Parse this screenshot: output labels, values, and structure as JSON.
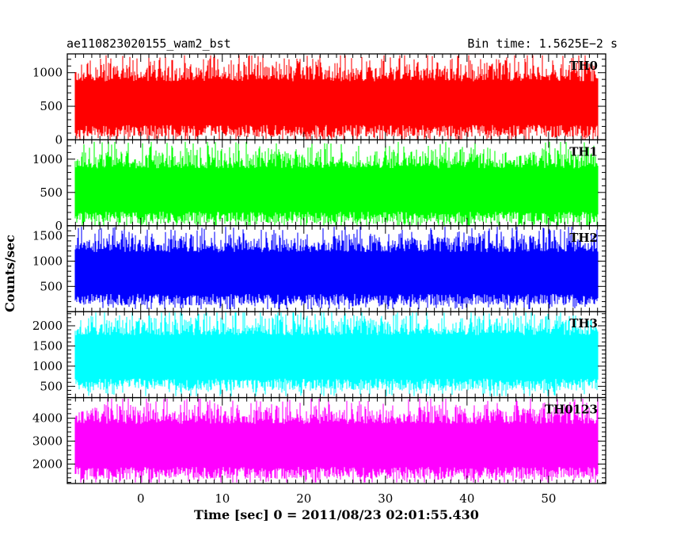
{
  "header": {
    "left_title": "ae110823020155_wam2_bst",
    "right_title": "Bin time: 1.5625E−2 s"
  },
  "chart_data": {
    "type": "line",
    "ylabel": "Counts/sec",
    "xlabel": "Time [sec] 0 = 2011/08/23 02:01:55.430",
    "xlim": [
      -9,
      57
    ],
    "data_range": [
      -8.0,
      56.0
    ],
    "xticks": [
      0,
      10,
      20,
      30,
      40,
      50
    ],
    "panels": [
      {
        "name": "TH0",
        "color": "#ff0000",
        "ylim": [
          0,
          1280
        ],
        "yticks": [
          0,
          500,
          1000
        ],
        "mean": 560,
        "spread": 260,
        "low_min": 0,
        "high_max": 1260
      },
      {
        "name": "TH1",
        "color": "#00ff00",
        "ylim": [
          0,
          1290
        ],
        "yticks": [
          0,
          500,
          1000
        ],
        "mean": 550,
        "spread": 260,
        "low_min": 0,
        "high_max": 1260
      },
      {
        "name": "TH2",
        "color": "#0000ff",
        "ylim": [
          0,
          1700
        ],
        "yticks": [
          500,
          1000,
          1500
        ],
        "mean": 780,
        "spread": 330,
        "low_min": 50,
        "high_max": 1680
      },
      {
        "name": "TH3",
        "color": "#00ffff",
        "ylim": [
          220,
          2350
        ],
        "yticks": [
          500,
          1000,
          1500,
          2000
        ],
        "mean": 1250,
        "spread": 430,
        "low_min": 260,
        "high_max": 2330
      },
      {
        "name": "TH0123",
        "color": "#ff00ff",
        "ylim": [
          1150,
          4900
        ],
        "yticks": [
          2000,
          3000,
          4000
        ],
        "mean": 2850,
        "spread": 750,
        "low_min": 1200,
        "high_max": 4850
      }
    ]
  }
}
